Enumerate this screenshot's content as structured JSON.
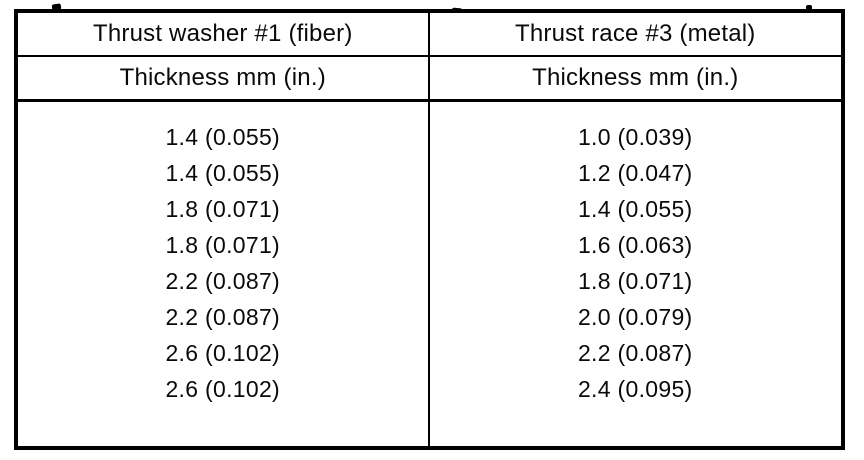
{
  "table": {
    "columns": [
      {
        "header": "Thrust washer #1 (fiber)",
        "subheader": "Thickness mm (in.)",
        "values": [
          "1.4 (0.055)",
          "1.4 (0.055)",
          "1.8 (0.071)",
          "1.8 (0.071)",
          "2.2 (0.087)",
          "2.2 (0.087)",
          "2.6 (0.102)",
          "2.6 (0.102)"
        ]
      },
      {
        "header": "Thrust race #3 (metal)",
        "subheader": "Thickness mm (in.)",
        "values": [
          "1.0 (0.039)",
          "1.2 (0.047)",
          "1.4 (0.055)",
          "1.6 (0.063)",
          "1.8 (0.071)",
          "2.0 (0.079)",
          "2.2 (0.087)",
          "2.4 (0.095)"
        ]
      }
    ]
  }
}
